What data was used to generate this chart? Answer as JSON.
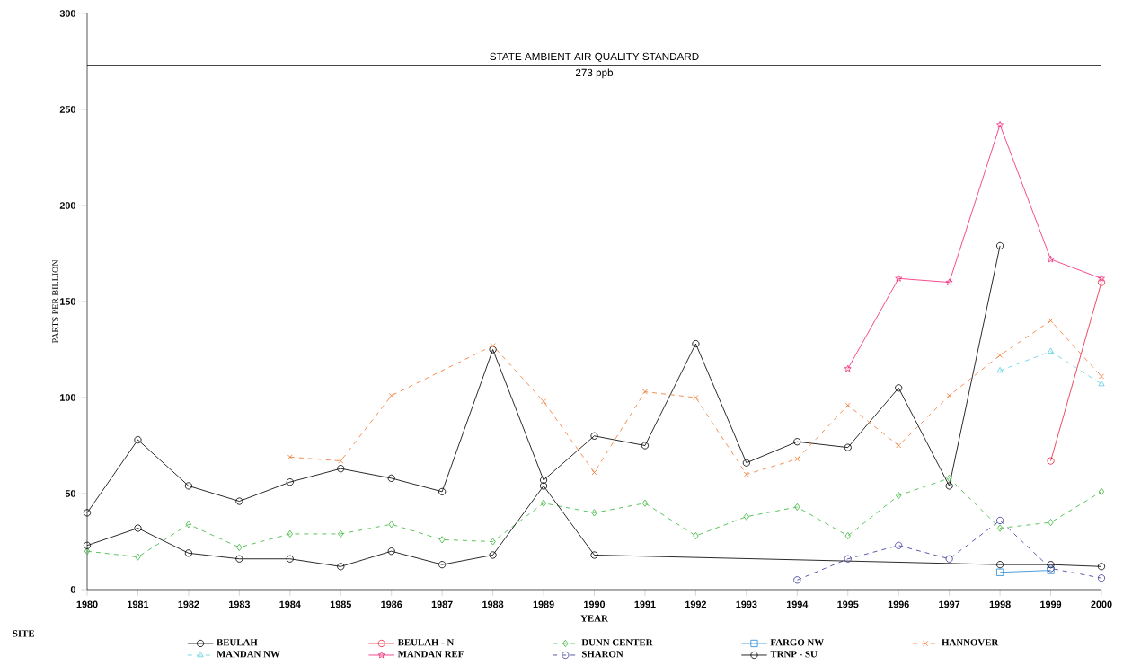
{
  "chart_data": {
    "type": "line",
    "xlabel": "YEAR",
    "ylabel": "PARTS PER BILLION",
    "legend_title": "SITE",
    "legend": "bottom",
    "xlim": [
      1980,
      2000
    ],
    "ylim": [
      0,
      300
    ],
    "xticks": [
      1980,
      1981,
      1982,
      1983,
      1984,
      1985,
      1986,
      1987,
      1988,
      1989,
      1990,
      1991,
      1992,
      1993,
      1994,
      1995,
      1996,
      1997,
      1998,
      1999,
      2000
    ],
    "yticks": [
      0,
      50,
      100,
      150,
      200,
      250,
      300
    ],
    "ref_lines": [
      {
        "axis": "y",
        "value": 273,
        "label": "STATE AMBIENT AIR QUALITY STANDARD",
        "color": "#000000"
      }
    ],
    "annotations": [
      "273 ppb"
    ],
    "series": [
      {
        "name": "BEULAH",
        "color": "#000000",
        "marker": "circle",
        "line_style": "solid",
        "x": [
          1980,
          1981,
          1982,
          1983,
          1984,
          1985,
          1986,
          1987,
          1988,
          1989,
          1990,
          1991,
          1992,
          1993,
          1994,
          1995,
          1996,
          1997,
          1998
        ],
        "values": [
          40,
          78,
          54,
          46,
          56,
          63,
          58,
          51,
          125,
          57,
          80,
          75,
          128,
          66,
          77,
          74,
          105,
          54,
          179
        ]
      },
      {
        "name": "BEULAH - N",
        "color": "#e8283c",
        "marker": "circle",
        "line_style": "solid",
        "x": [
          1999,
          2000
        ],
        "values": [
          67,
          160
        ]
      },
      {
        "name": "DUNN CENTER",
        "color": "#3cb83c",
        "marker": "diamond",
        "line_style": "dashed",
        "x": [
          1980,
          1981,
          1982,
          1983,
          1984,
          1985,
          1986,
          1987,
          1988,
          1989,
          1990,
          1991,
          1992,
          1993,
          1994,
          1995,
          1996,
          1997,
          1998,
          1999,
          2000
        ],
        "values": [
          20,
          17,
          34,
          22,
          29,
          29,
          34,
          26,
          25,
          45,
          40,
          45,
          28,
          38,
          43,
          28,
          49,
          58,
          32,
          35,
          51
        ]
      },
      {
        "name": "FARGO NW",
        "color": "#2a8ad4",
        "marker": "square",
        "line_style": "solid",
        "x": [
          1998,
          1999
        ],
        "values": [
          9,
          10
        ]
      },
      {
        "name": "HANNOVER",
        "color": "#f07830",
        "marker": "cross",
        "line_style": "dashed",
        "x": [
          1984,
          1985,
          1986,
          1988,
          1989,
          1990,
          1991,
          1992,
          1993,
          1994,
          1995,
          1996,
          1997,
          1998,
          1999,
          2000
        ],
        "values": [
          69,
          67,
          101,
          127,
          98,
          61,
          103,
          100,
          60,
          68,
          96,
          75,
          101,
          122,
          140,
          111
        ]
      },
      {
        "name": "MANDAN NW",
        "color": "#60d0e0",
        "marker": "triangle",
        "line_style": "dashed",
        "x": [
          1998,
          1999,
          2000
        ],
        "values": [
          114,
          124,
          107
        ]
      },
      {
        "name": "MANDAN REF",
        "color": "#f0287a",
        "marker": "star",
        "line_style": "solid",
        "x": [
          1995,
          1996,
          1997,
          1998,
          1999,
          2000
        ],
        "values": [
          115,
          162,
          160,
          242,
          172,
          162
        ]
      },
      {
        "name": "SHARON",
        "color": "#3a3a9a",
        "marker": "circle",
        "line_style": "dashed",
        "x": [
          1994,
          1995,
          1996,
          1997,
          1998,
          1999,
          2000
        ],
        "values": [
          5,
          16,
          23,
          16,
          36,
          11,
          6
        ]
      },
      {
        "name": "TRNP - SU",
        "color": "#000000",
        "marker": "circle",
        "line_style": "solid",
        "x": [
          1980,
          1981,
          1982,
          1983,
          1984,
          1985,
          1986,
          1987,
          1988,
          1989,
          1990,
          1998,
          1999,
          2000
        ],
        "values": [
          23,
          32,
          19,
          16,
          16,
          12,
          20,
          13,
          18,
          54,
          18,
          13,
          13,
          12
        ]
      }
    ]
  }
}
